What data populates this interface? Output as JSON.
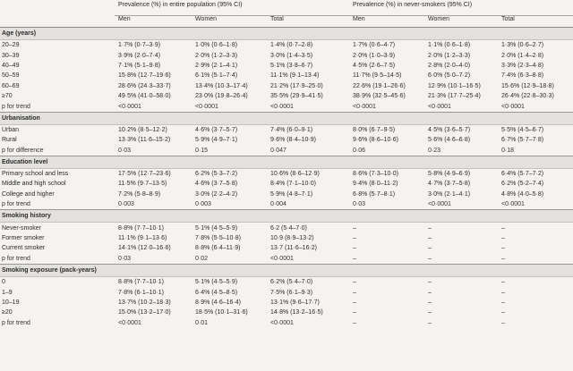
{
  "header": {
    "group1": "Prevalence (%) in entire population (95% CI)",
    "group2": "Prevalence (%) in never-smokers (95% CI)",
    "cols": [
      "Men",
      "Women",
      "Total",
      "Men",
      "Women",
      "Total"
    ]
  },
  "sections": [
    {
      "title": "Age (years)",
      "rows": [
        {
          "label": "20–29",
          "cells": [
            "1·7% (0·7–3·9)",
            "1·0% (0·6–1·8)",
            "1·4% (0·7–2·8)",
            "1·7% (0·6–4·7)",
            "1·1% (0·6–1·8)",
            "1·3% (0·6–2·7)"
          ]
        },
        {
          "label": "30–39",
          "cells": [
            "3·9% (2·0–7·4)",
            "2·0% (1·2–3·3)",
            "3·0% (1·4–3·5)",
            "2·0% (1·0–3·9)",
            "2·0% (1·2–3·3)",
            "2·0% (1·4–2·8)"
          ]
        },
        {
          "label": "40–49",
          "cells": [
            "7·1% (5·1–9·8)",
            "2·9% (2·1–4·1)",
            "5·1% (3·8–6·7)",
            "4·5% (2·6–7·5)",
            "2·8% (2·0–4·0)",
            "3·3% (2·3–4·8)"
          ]
        },
        {
          "label": "50–59",
          "cells": [
            "15·8% (12·7–19·6)",
            "6·1% (5·1–7·4)",
            "11·1% (9·1–13·4)",
            "11·7% (9·5–14·5)",
            "6·0% (5·0–7·2)",
            "7·4% (6·3–8·8)"
          ]
        },
        {
          "label": "60–69",
          "cells": [
            "28·6% (24·3–33·7)",
            "13·4% (10·3–17·4)",
            "21·2% (17·9–25·0)",
            "22·6% (19·1–26·6)",
            "12·9% (10·1–16·5)",
            "15·6% (12·9–18·8)"
          ]
        },
        {
          "label": "≥70",
          "cells": [
            "49·5% (41·0–58·0)",
            "23·0% (19·8–26·4)",
            "35·5% (29·9–41·5)",
            "38·9% (32·5–45·6)",
            "21·3% (17·7–25·4)",
            "26·4% (22·8–30·3)"
          ]
        },
        {
          "label": "p for trend",
          "trend": true,
          "cells": [
            "<0·0001",
            "<0·0001",
            "<0·0001",
            "<0·0001",
            "<0·0001",
            "<0·0001"
          ]
        }
      ]
    },
    {
      "title": "Urbanisation",
      "rows": [
        {
          "label": "Urban",
          "cells": [
            "10·2% (8·5–12·2)",
            "4·6% (3·7–5·7)",
            "7·4% (6·0–9·1)",
            "8·0% (6·7–9·5)",
            "4·5% (3·6–5·7)",
            "5·5% (4·5–6·7)"
          ]
        },
        {
          "label": "Rural",
          "cells": [
            "13·3% (11·6–15·2)",
            "5·9% (4·9–7·1)",
            "9·6% (8·4–10·9)",
            "9·6% (8·6–10·6)",
            "5·6% (4·6–6·8)",
            "6·7% (5·7–7·8)"
          ]
        },
        {
          "label": "p for difference",
          "trend": true,
          "cells": [
            "0·03",
            "0·15",
            "0·047",
            "0·06",
            "0·23",
            "0·18"
          ]
        }
      ]
    },
    {
      "title": "Education level",
      "rows": [
        {
          "label": "Primary school and less",
          "cells": [
            "17·5% (12·7–23·6)",
            "6·2% (5·3–7·2)",
            "10·6% (8·6–12·9)",
            "8·6% (7·3–10·0)",
            "5·8% (4·9–6·9)",
            "6·4% (5·7–7·2)"
          ]
        },
        {
          "label": "Middle and high school",
          "cells": [
            "11·5% (9·7–13·5)",
            "4·6% (3·7–5·8)",
            "8·4% (7·1–10·0)",
            "9·4% (8·0–11·2)",
            "4·7% (3·7–5·8)",
            "6·2% (5·2–7·4)"
          ]
        },
        {
          "label": "College and higher",
          "cells": [
            "7·2% (5·8–8·9)",
            "3·0% (2·2–4·2)",
            "5·9% (4·8–7·1)",
            "6·8% (5·7–8·1)",
            "3·0% (2·1–4·1)",
            "4·8% (4·0–5·8)"
          ]
        },
        {
          "label": "p for trend",
          "trend": true,
          "cells": [
            "0·003",
            "0·003",
            "0·004",
            "0·03",
            "<0·0001",
            "<0·0001"
          ]
        }
      ]
    },
    {
      "title": "Smoking history",
      "rows": [
        {
          "label": "Never-smoker",
          "cells": [
            "8·8% (7·7–10·1)",
            "5·1% (4·5–5·9)",
            "6·2 (5·4–7·0)",
            "–",
            "–",
            "–"
          ]
        },
        {
          "label": "Former smoker",
          "cells": [
            "11·1% (9·1–13·6)",
            "7·8% (5·5–10·8)",
            "10·9 (8·9–13·2)",
            "–",
            "–",
            "–"
          ]
        },
        {
          "label": "Current smoker",
          "cells": [
            "14·1% (12·0–16·6)",
            "8·8% (6·4–11·9)",
            "13·7 (11·6–16·2)",
            "–",
            "–",
            "–"
          ]
        },
        {
          "label": "p for trend",
          "trend": true,
          "cells": [
            "0·03",
            "0·02",
            "<0·0001",
            "–",
            "–",
            "–"
          ]
        }
      ]
    },
    {
      "title": "Smoking exposure (pack-years)",
      "rows": [
        {
          "label": "0",
          "cells": [
            "8·8% (7·7–10·1)",
            "5·1% (4·5–5·9)",
            "6·2% (5·4–7·0)",
            "–",
            "–",
            "–"
          ]
        },
        {
          "label": "1–9",
          "cells": [
            "7·8% (6·1–10·1)",
            "6·4% (4·5–8·5)",
            "7·5% (6·1–9·3)",
            "–",
            "–",
            "–"
          ]
        },
        {
          "label": "10–19",
          "cells": [
            "13·7% (10·2–18·3)",
            "8·9% (4·6–16·4)",
            "13·1% (9·6–17·7)",
            "–",
            "–",
            "–"
          ]
        },
        {
          "label": "≥20",
          "cells": [
            "15·0% (13·2–17·0)",
            "18·5% (10·1–31·6)",
            "14·8% (13·2–16·5)",
            "–",
            "–",
            "–"
          ]
        },
        {
          "label": "p for trend",
          "trend": true,
          "cells": [
            "<0·0001",
            "0·01",
            "<0·0001",
            "–",
            "–",
            "–"
          ]
        }
      ]
    }
  ]
}
